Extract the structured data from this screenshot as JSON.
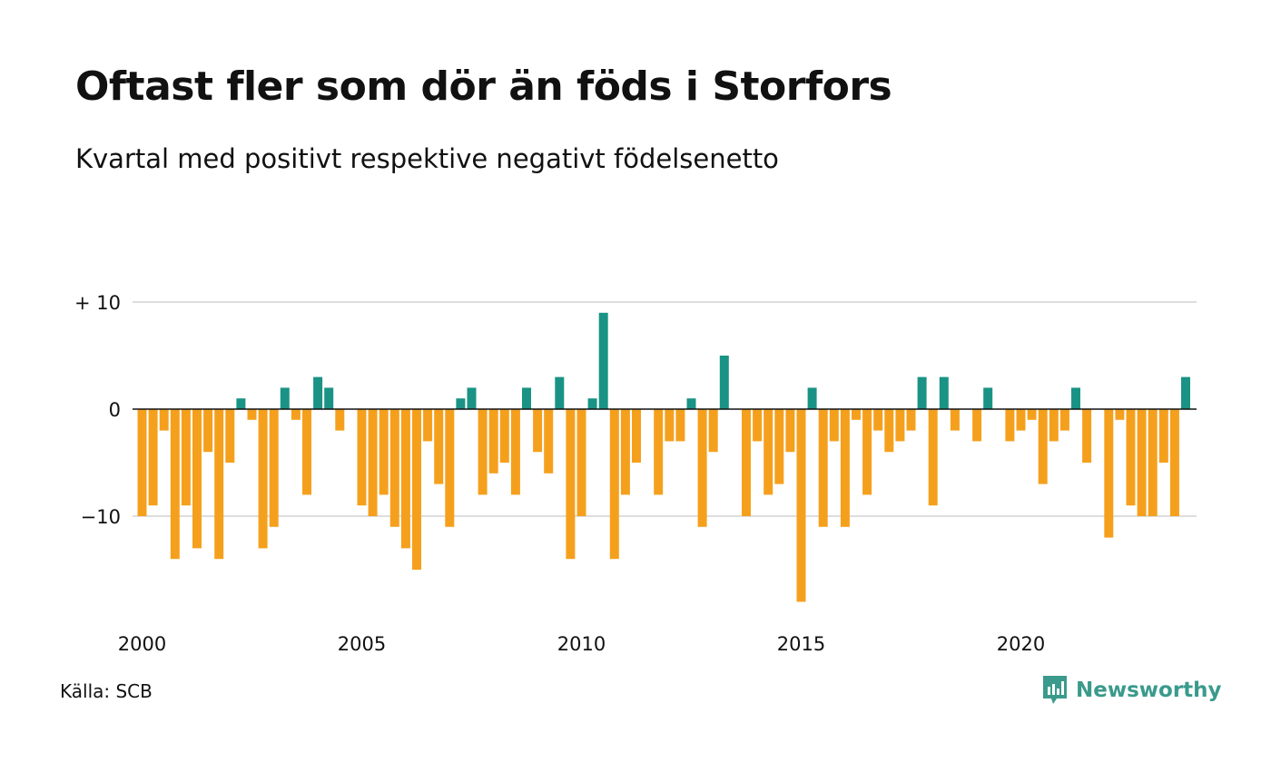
{
  "title": "Oftast fler som dör än föds i Storfors",
  "subtitle": "Kvartal med positivt respektive negativt födelsenetto",
  "source": "Källa: SCB",
  "brand": "Newsworthy",
  "colors": {
    "positive": "#1a9385",
    "negative": "#f5a01d",
    "grid": "#dddddd",
    "brand": "#3a9a8c"
  },
  "chart_data": {
    "type": "bar",
    "x_start": "2000 Q1",
    "quarter_labels_note": "",
    "values": [
      -10,
      -9,
      -2,
      -14,
      -9,
      -13,
      -4,
      -14,
      -5,
      1,
      -1,
      -13,
      -11,
      2,
      -1,
      -8,
      3,
      2,
      -2,
      0,
      -9,
      -10,
      -8,
      -11,
      -13,
      -15,
      -3,
      -7,
      -11,
      1,
      2,
      -8,
      -6,
      -5,
      -8,
      2,
      -4,
      -6,
      3,
      -14,
      -10,
      1,
      9,
      -14,
      -8,
      -5,
      0,
      -8,
      -3,
      -3,
      1,
      -11,
      -4,
      5,
      0,
      -10,
      -3,
      -8,
      -7,
      -4,
      -18,
      2,
      -11,
      -3,
      -11,
      -1,
      -8,
      -2,
      -4,
      -3,
      -2,
      3,
      -9,
      3,
      -2,
      0,
      -3,
      2,
      0,
      -3,
      -2,
      -1,
      -7,
      -3,
      -2,
      2,
      -5,
      0,
      -12,
      -1,
      -9,
      -10,
      -10,
      -5,
      -10,
      3
    ],
    "y_ticks": [
      {
        "value": 10,
        "label": "+ 10"
      },
      {
        "value": 0,
        "label": "0"
      },
      {
        "value": -10,
        "label": "−10"
      }
    ],
    "x_ticks": [
      {
        "year": 2000,
        "label": "2000"
      },
      {
        "year": 2005,
        "label": "2005"
      },
      {
        "year": 2010,
        "label": "2010"
      },
      {
        "year": 2015,
        "label": "2015"
      },
      {
        "year": 2020,
        "label": "2020"
      }
    ],
    "ylim": [
      -18,
      10
    ],
    "grid": true,
    "legend": "none"
  }
}
